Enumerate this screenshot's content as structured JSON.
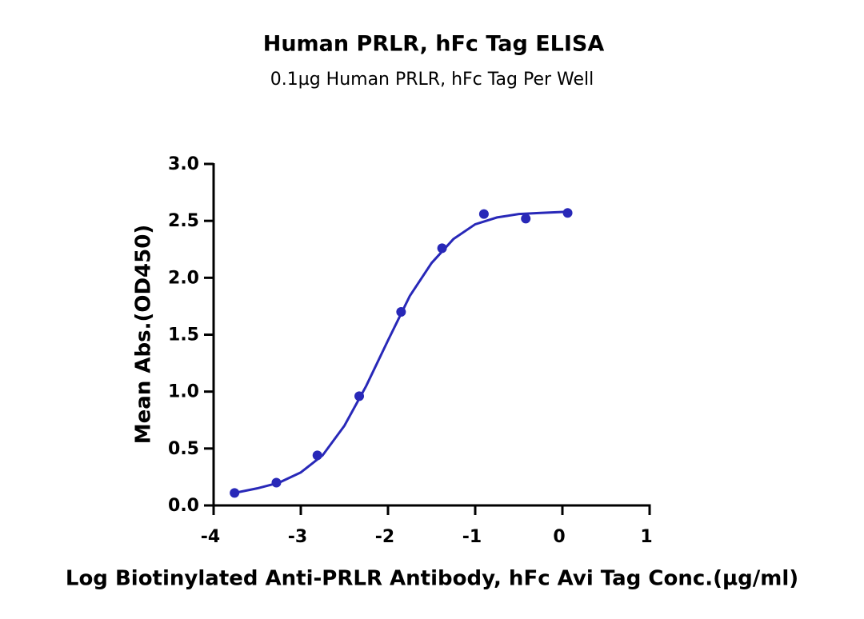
{
  "chart_data": {
    "type": "scatter",
    "title": "Human PRLR, hFc Tag ELISA",
    "subtitle": "0.1µg Human PRLR, hFc Tag Per Well",
    "x_label": "Log Biotinylated Anti-PRLR Antibody, hFc Avi Tag Conc.(µg/ml)",
    "y_label": "Mean Abs.(OD450)",
    "color": "#2828b8",
    "x": [
      -3.76,
      -3.28,
      -2.81,
      -2.33,
      -1.85,
      -1.38,
      -0.9,
      -0.42,
      0.06
    ],
    "values": [
      0.11,
      0.2,
      0.44,
      0.96,
      1.7,
      2.26,
      2.56,
      2.52,
      2.57
    ],
    "fit_curve": {
      "x": [
        -3.76,
        -3.5,
        -3.25,
        -3.0,
        -2.75,
        -2.5,
        -2.25,
        -2.0,
        -1.75,
        -1.5,
        -1.25,
        -1.0,
        -0.75,
        -0.5,
        -0.25,
        0.06
      ],
      "values": [
        0.11,
        0.15,
        0.2,
        0.29,
        0.44,
        0.7,
        1.05,
        1.45,
        1.84,
        2.13,
        2.34,
        2.47,
        2.53,
        2.56,
        2.57,
        2.58
      ]
    },
    "xlim": [
      -4,
      1
    ],
    "xticks": [
      -4,
      -3,
      -2,
      -1,
      0,
      1
    ],
    "ylim": [
      0,
      3
    ],
    "yticks": [
      {
        "value": 0,
        "label": "0.0"
      },
      0.5,
      {
        "value": 1,
        "label": "1.0"
      },
      1.5,
      {
        "value": 2,
        "label": "2.0"
      },
      2.5,
      {
        "value": 3,
        "label": "3.0"
      }
    ]
  }
}
